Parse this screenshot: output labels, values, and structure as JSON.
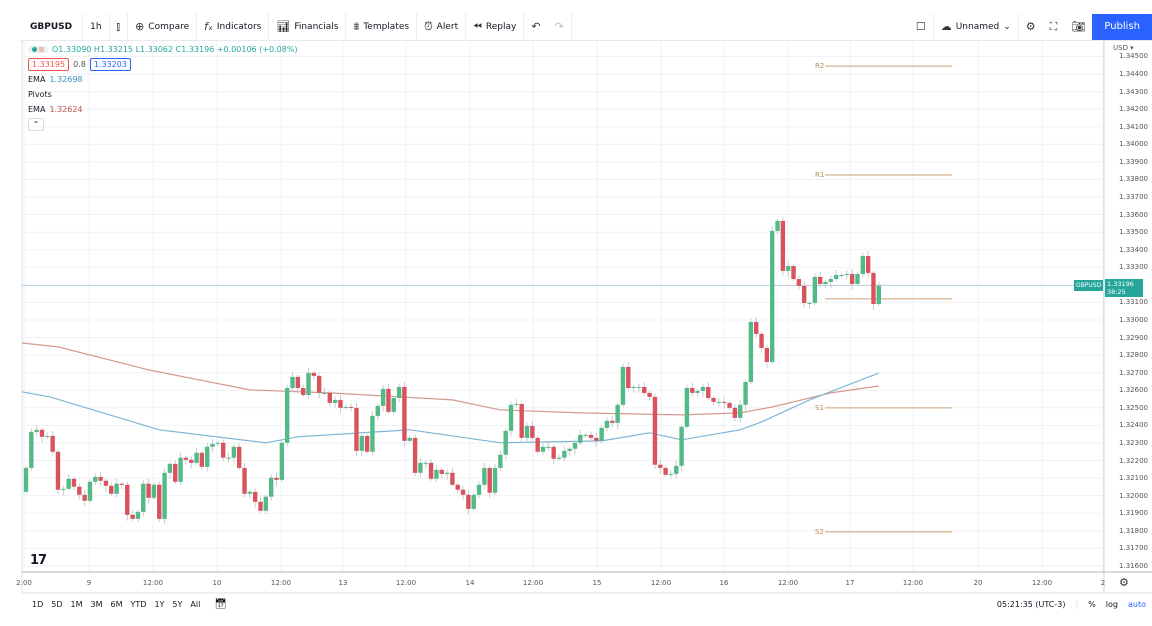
{
  "toolbar": {
    "symbol": "GBPUSD",
    "interval": "1h",
    "compare": "Compare",
    "indicators": "Indicators",
    "financials": "Financials",
    "templates": "Templates",
    "alert": "Alert",
    "replay": "Replay",
    "layout_name": "Unnamed",
    "publish": "Publish"
  },
  "legend": {
    "ohlc": "O1.33090 H1.33215 L1.33062 C1.33196 +0.00106 (+0.08%)",
    "bid": "1.33195",
    "spread": "0.8",
    "ask": "1.33203",
    "ema1_label": "EMA",
    "ema1_value": "1.32698",
    "pivots_label": "Pivots",
    "ema2_label": "EMA",
    "ema2_value": "1.32624"
  },
  "price_axis": {
    "currency": "USD ▾",
    "labels": [
      "1.34500",
      "1.34400",
      "1.34300",
      "1.34200",
      "1.34100",
      "1.34000",
      "1.33900",
      "1.33800",
      "1.33700",
      "1.33600",
      "1.33500",
      "1.33400",
      "1.33300",
      "1.33100",
      "1.33000",
      "1.32900",
      "1.32800",
      "1.32700",
      "1.32600",
      "1.32500",
      "1.32400",
      "1.32300",
      "1.32200",
      "1.32100",
      "1.32000",
      "1.31900",
      "1.31800",
      "1.31700",
      "1.31600"
    ],
    "last_symbol": "GBPUSD",
    "last_price": "1.33196",
    "countdown": "38:25"
  },
  "time_axis": {
    "labels": [
      "2:00",
      "9",
      "12:00",
      "10",
      "12:00",
      "13",
      "12:00",
      "14",
      "12:00",
      "15",
      "12:00",
      "16",
      "12:00",
      "17",
      "12:00",
      "20",
      "12:00",
      "2"
    ]
  },
  "bottom": {
    "ranges": [
      "1D",
      "5D",
      "1M",
      "3M",
      "6M",
      "YTD",
      "1Y",
      "5Y",
      "All"
    ],
    "clock": "05:21:35 (UTC-3)",
    "percent": "%",
    "log": "log",
    "auto": "auto"
  },
  "colors": {
    "up": "#53b987",
    "down": "#d9535e",
    "ema_fast": "#7fb6d4",
    "ema_slow": "#d49a8e",
    "pivot": "#c9a27a",
    "accent": "#2962ff"
  },
  "chart_data": {
    "type": "candlestick",
    "symbol": "GBPUSD",
    "interval": "1h",
    "first_open": 1.32022,
    "close": [
      1.32158,
      1.32363,
      1.32375,
      1.32335,
      1.3234,
      1.3225,
      1.32034,
      1.32039,
      1.32096,
      1.32051,
      1.32005,
      1.31971,
      1.32079,
      1.32107,
      1.32085,
      1.32056,
      1.32011,
      1.32068,
      1.32062,
      1.31891,
      1.31868,
      1.31908,
      1.32068,
      1.31988,
      1.32062,
      1.31868,
      1.3213,
      1.32181,
      1.32079,
      1.32216,
      1.32204,
      1.32187,
      1.32244,
      1.32164,
      1.32278,
      1.32295,
      1.32301,
      1.32216,
      1.32216,
      1.32278,
      1.32158,
      1.32011,
      1.32022,
      1.31965,
      1.31914,
      1.31994,
      1.32102,
      1.3209,
      1.32301,
      1.32613,
      1.32676,
      1.32613,
      1.32573,
      1.32699,
      1.32682,
      1.32585,
      1.32585,
      1.32528,
      1.32545,
      1.325,
      1.32505,
      1.325,
      1.32255,
      1.3234,
      1.3225,
      1.32454,
      1.32511,
      1.32608,
      1.32477,
      1.32556,
      1.32619,
      1.32312,
      1.32329,
      1.3213,
      1.32187,
      1.32187,
      1.32096,
      1.32147,
      1.32124,
      1.3213,
      1.32062,
      1.32034,
      1.32005,
      1.31925,
      1.32005,
      1.32062,
      1.32158,
      1.32017,
      1.32158,
      1.32233,
      1.32369,
      1.32517,
      1.32522,
      1.32329,
      1.32397,
      1.32329,
      1.3225,
      1.32278,
      1.32278,
      1.3221,
      1.32216,
      1.32255,
      1.32267,
      1.32301,
      1.32346,
      1.32346,
      1.32329,
      1.32312,
      1.32386,
      1.32426,
      1.32414,
      1.32517,
      1.32733,
      1.32613,
      1.32619,
      1.32619,
      1.32585,
      1.32562,
      1.32176,
      1.32158,
      1.32119,
      1.32124,
      1.3217,
      1.32392,
      1.32613,
      1.32585,
      1.32596,
      1.32619,
      1.32556,
      1.32534,
      1.32534,
      1.32528,
      1.325,
      1.32443,
      1.32517,
      1.32647,
      1.32989,
      1.32921,
      1.32841,
      1.32761,
      1.33507,
      1.33564,
      1.33279,
      1.33307,
      1.33233,
      1.33194,
      1.33097,
      1.33097,
      1.33245,
      1.33205,
      1.33216,
      1.33233,
      1.33256,
      1.33256,
      1.33262,
      1.33205,
      1.33262,
      1.33364,
      1.33268,
      1.33091,
      1.33196
    ],
    "ema_fast": {
      "name": "EMA",
      "points": [
        [
          -1,
          1.32591
        ],
        [
          4.5,
          1.32562
        ],
        [
          25,
          1.32375
        ],
        [
          45,
          1.32301
        ],
        [
          51,
          1.32335
        ],
        [
          72,
          1.32375
        ],
        [
          89,
          1.32301
        ],
        [
          108,
          1.32312
        ],
        [
          117,
          1.32358
        ],
        [
          123,
          1.32318
        ],
        [
          134,
          1.32375
        ],
        [
          138,
          1.3242
        ],
        [
          147,
          1.32545
        ],
        [
          160,
          1.32698
        ]
      ]
    },
    "ema_slow": {
      "name": "EMA",
      "points": [
        [
          -1,
          1.32869
        ],
        [
          6,
          1.32847
        ],
        [
          23,
          1.32716
        ],
        [
          42,
          1.32602
        ],
        [
          57,
          1.32585
        ],
        [
          80,
          1.32545
        ],
        [
          89,
          1.32488
        ],
        [
          104,
          1.32471
        ],
        [
          123,
          1.3246
        ],
        [
          134,
          1.32471
        ],
        [
          140,
          1.32505
        ],
        [
          151,
          1.32585
        ],
        [
          160,
          1.32624
        ]
      ]
    },
    "pivots": [
      {
        "label": "R2",
        "value": 1.34445
      },
      {
        "label": "R1",
        "value": 1.33825
      },
      {
        "label": "",
        "value": 1.3312
      },
      {
        "label": "S1",
        "value": 1.325
      },
      {
        "label": "S2",
        "value": 1.31794
      }
    ],
    "ylim": [
      1.316,
      1.3465
    ],
    "last_price_line": 1.33196
  }
}
